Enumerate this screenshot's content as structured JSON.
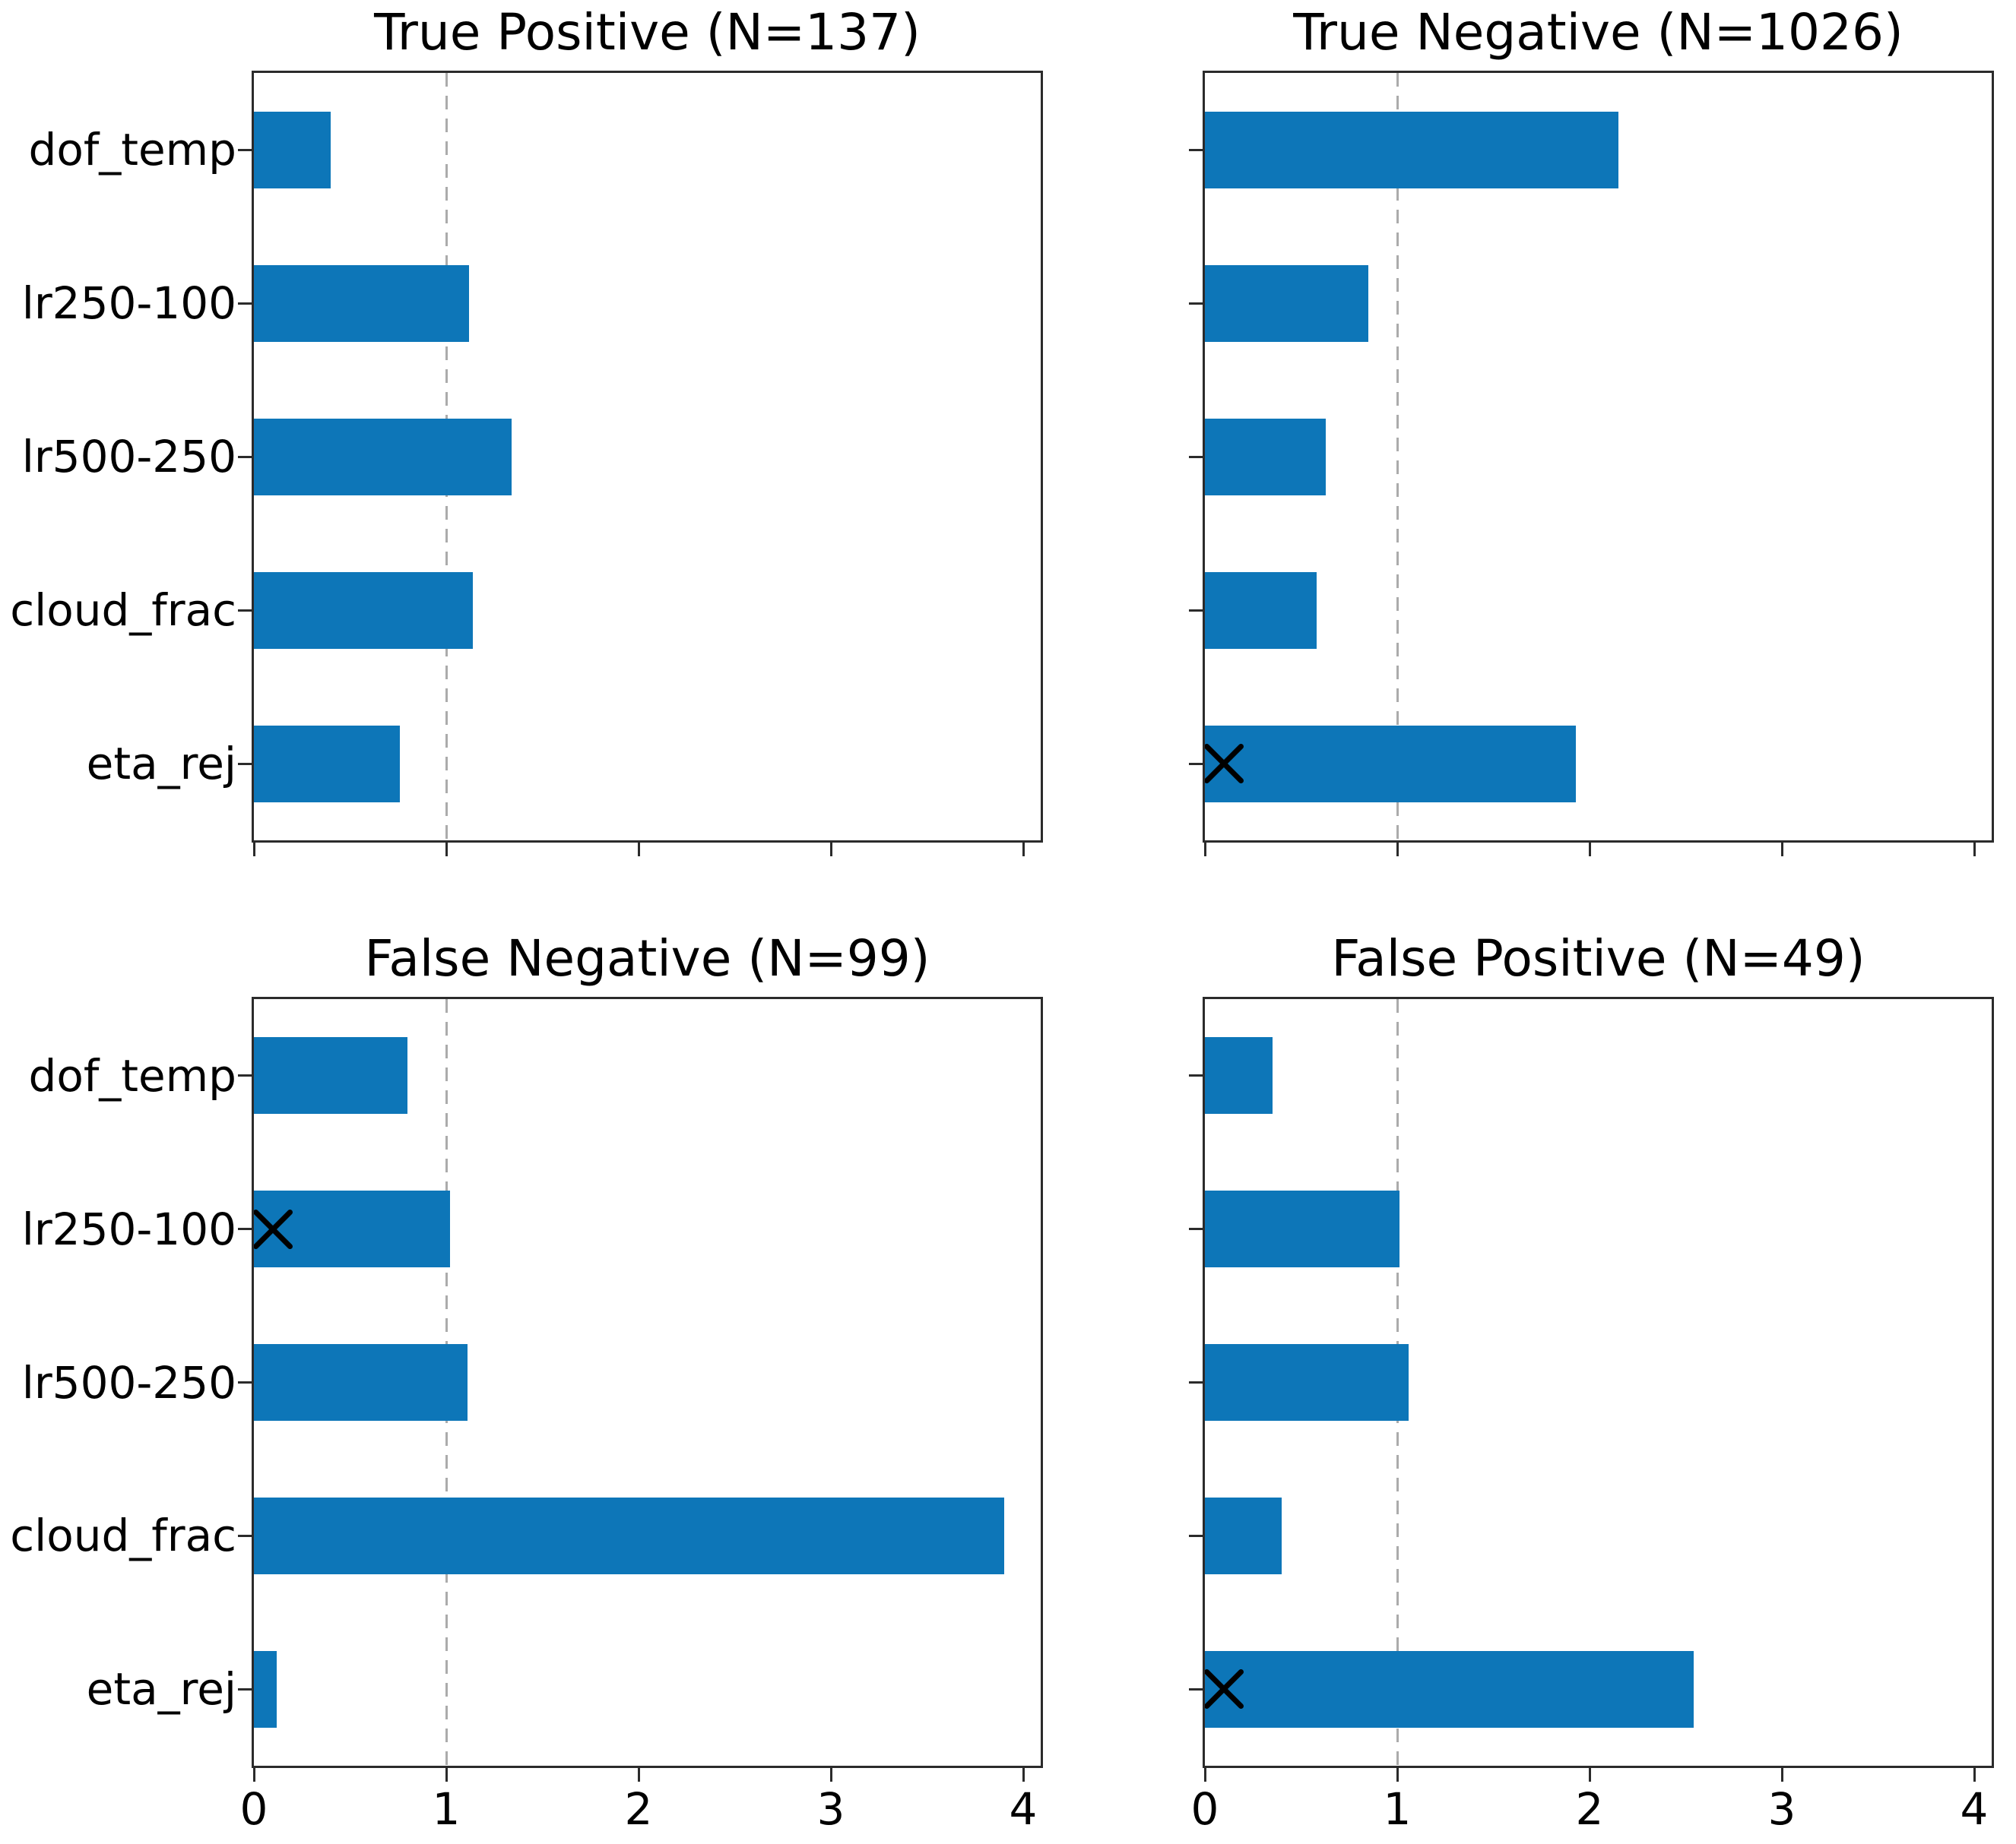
{
  "figure": {
    "background_color": "#ffffff",
    "bar_color": "#0d76b8",
    "gridline_color": "#ababab",
    "spine_color": "#2b2b2b",
    "text_color": "#000000",
    "marker_color": "#000000",
    "marker_glyph": "x"
  },
  "chart_data": {
    "type": "bar",
    "orientation": "horizontal",
    "categories": [
      "dof_temp",
      "lr250-100",
      "lr500-250",
      "cloud_frac",
      "eta_rej"
    ],
    "xticks": [
      "0",
      "1",
      "2",
      "3",
      "4"
    ],
    "xlim": [
      0,
      4.09
    ],
    "gridline_x": 1,
    "grid": "dashed vertical line at x=1",
    "legend_position": "none",
    "charts": [
      {
        "title": "True Positive (N=137)",
        "values": [
          0.4,
          1.12,
          1.34,
          1.14,
          0.76
        ],
        "marker": null,
        "show_ytick_labels": true,
        "show_xtick_labels": false
      },
      {
        "title": "True Negative (N=1026)",
        "values": [
          2.15,
          0.85,
          0.63,
          0.58,
          1.93
        ],
        "marker": {
          "category": "eta_rej",
          "row": 4,
          "x": 0.1
        },
        "show_ytick_labels": false,
        "show_xtick_labels": false
      },
      {
        "title": "False Negative (N=99)",
        "values": [
          0.8,
          1.02,
          1.11,
          3.9,
          0.12
        ],
        "marker": {
          "category": "lr250-100",
          "row": 1,
          "x": 0.1
        },
        "show_ytick_labels": true,
        "show_xtick_labels": true
      },
      {
        "title": "False Positive (N=49)",
        "values": [
          0.35,
          1.01,
          1.06,
          0.4,
          2.54
        ],
        "marker": {
          "category": "eta_rej",
          "row": 4,
          "x": 0.1
        },
        "show_ytick_labels": false,
        "show_xtick_labels": true
      }
    ]
  }
}
